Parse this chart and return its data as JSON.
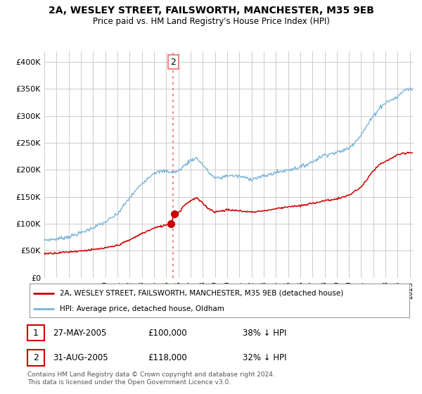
{
  "title": "2A, WESLEY STREET, FAILSWORTH, MANCHESTER, M35 9EB",
  "subtitle": "Price paid vs. HM Land Registry's House Price Index (HPI)",
  "title_fontsize": 10,
  "subtitle_fontsize": 8.5,
  "ylim": [
    0,
    420000
  ],
  "yticks": [
    0,
    50000,
    100000,
    150000,
    200000,
    250000,
    300000,
    350000,
    400000
  ],
  "ytick_labels": [
    "£0",
    "£50K",
    "£100K",
    "£150K",
    "£200K",
    "£250K",
    "£300K",
    "£350K",
    "£400K"
  ],
  "hpi_color": "#7ab4d8",
  "price_color": "#cc0000",
  "vline_color": "#e87070",
  "background_color": "#ffffff",
  "grid_color": "#cccccc",
  "legend_entry1": "2A, WESLEY STREET, FAILSWORTH, MANCHESTER, M35 9EB (detached house)",
  "legend_entry2": "HPI: Average price, detached house, Oldham",
  "transaction1_label": "1",
  "transaction1_date": "27-MAY-2005",
  "transaction1_price": "£100,000",
  "transaction1_hpi": "38% ↓ HPI",
  "transaction2_label": "2",
  "transaction2_date": "31-AUG-2005",
  "transaction2_price": "£118,000",
  "transaction2_hpi": "32% ↓ HPI",
  "footnote": "Contains HM Land Registry data © Crown copyright and database right 2024.\nThis data is licensed under the Open Government Licence v3.0.",
  "transaction1_x": 2005.38,
  "transaction1_y": 100000,
  "transaction2_x": 2005.66,
  "transaction2_y": 118000,
  "vline_x": 2005.58,
  "xlim_left": 1995,
  "xlim_right": 2025.3
}
